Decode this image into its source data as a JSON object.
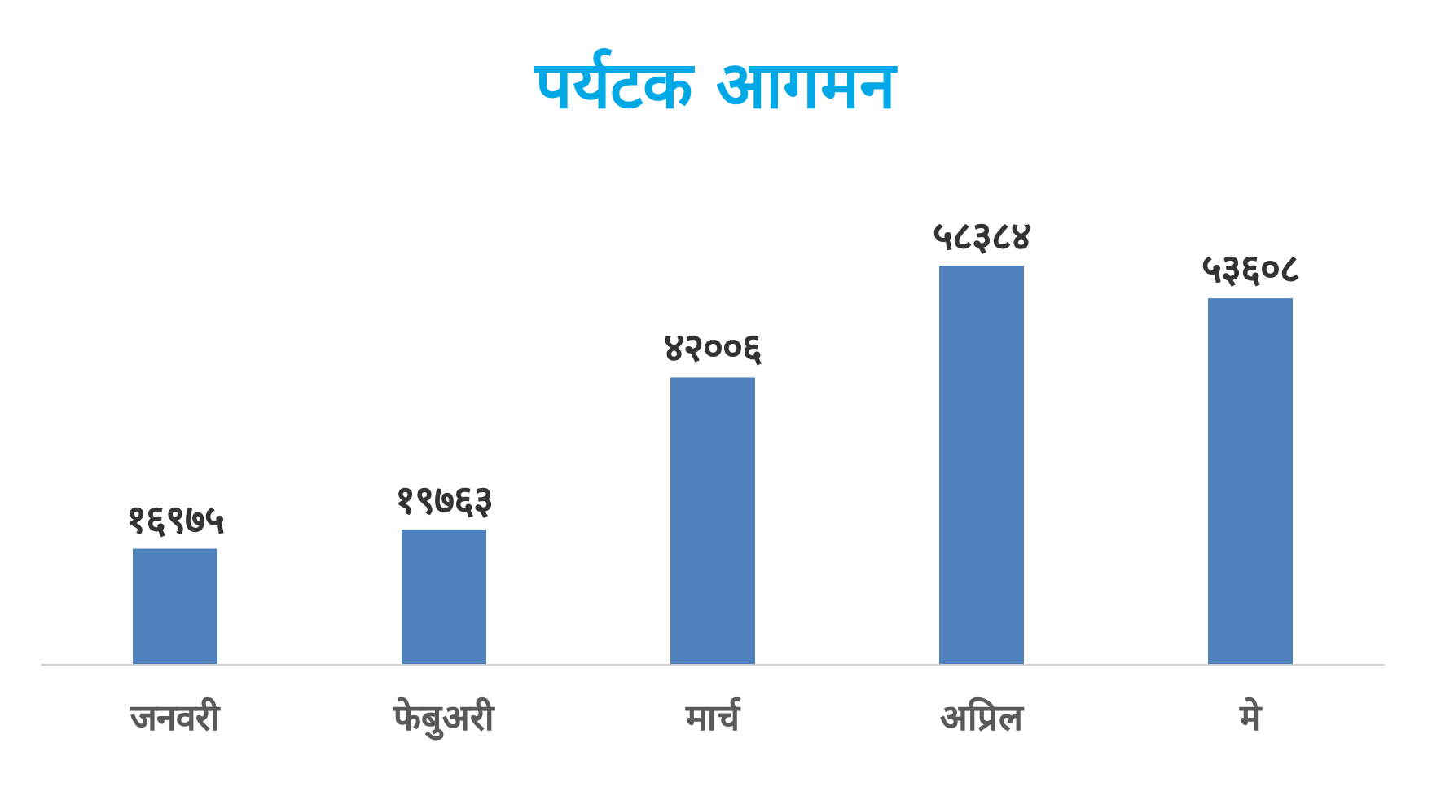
{
  "chart_data": {
    "type": "bar",
    "title": "पर्यटक आगमन",
    "categories": [
      "जनवरी",
      "फेबुअरी",
      "मार्च",
      "अप्रिल",
      "मे"
    ],
    "values": [
      16975,
      19763,
      42006,
      58384,
      53608
    ],
    "value_labels": [
      "१६९७५",
      "१९७६३",
      "४२००६",
      "५८३८४",
      "५३६०८"
    ],
    "color": "#4f81bd"
  }
}
